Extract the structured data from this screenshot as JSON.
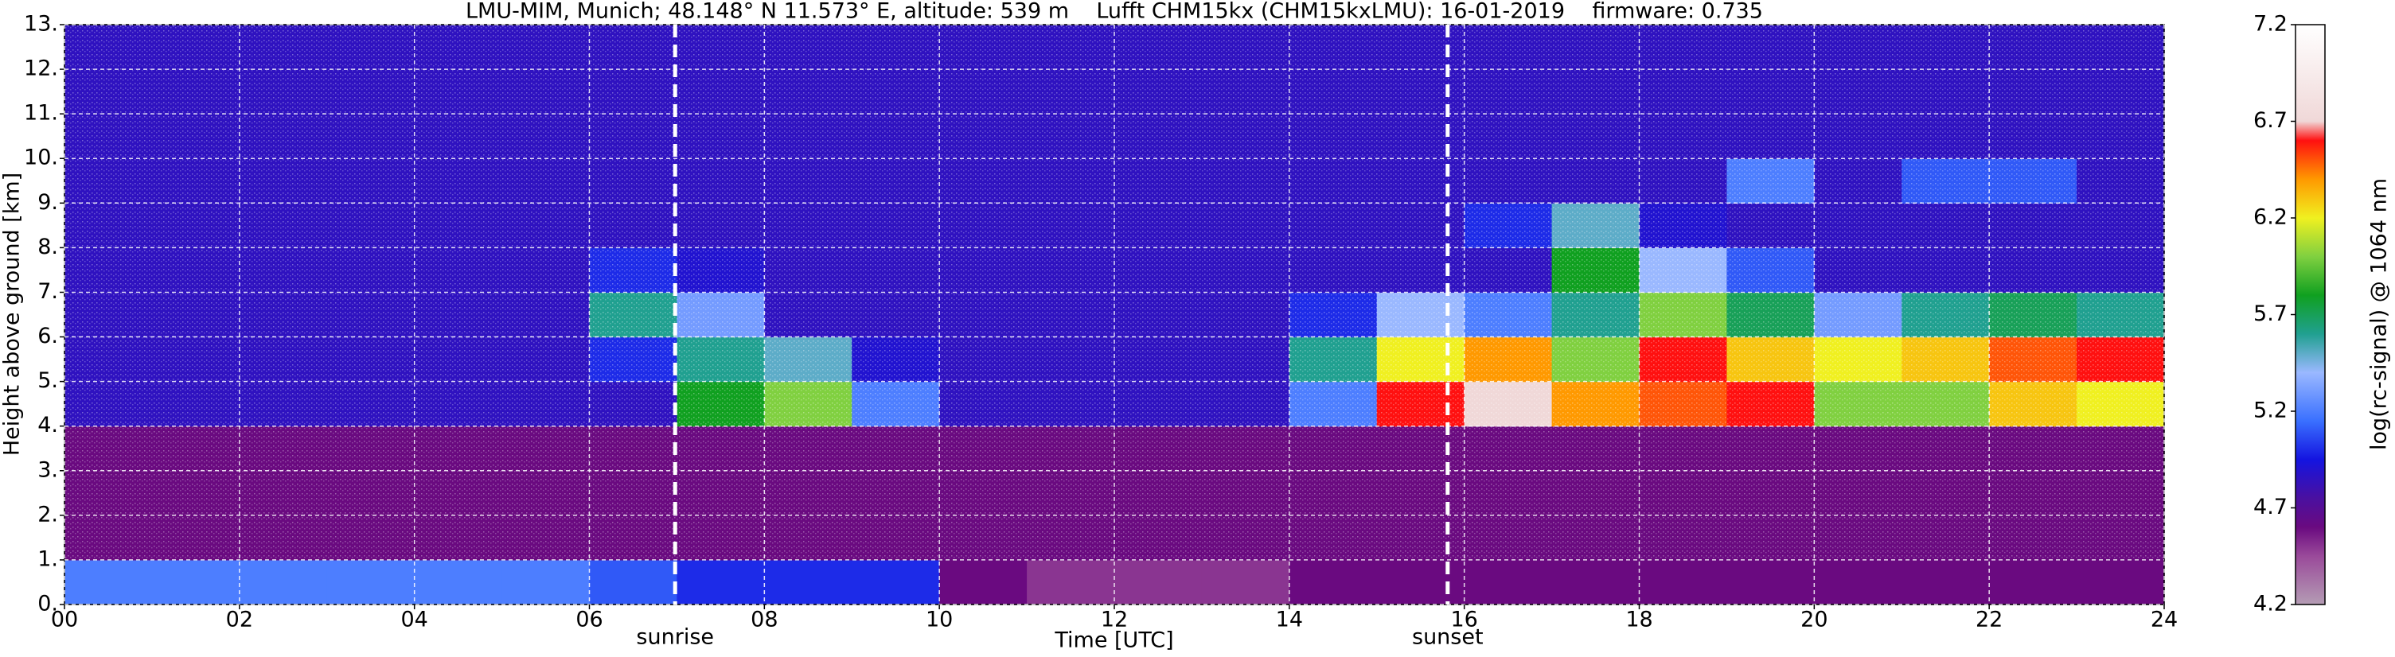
{
  "chart_data": {
    "type": "heatmap",
    "title": "LMU-MIM, Munich; 48.148° N 11.573° E, altitude: 539 m    Lufft CHM15kx (CHM15kxLMU): 16-01-2019    firmware: 0.735",
    "xlabel": "Time [UTC]",
    "ylabel": "Height above ground [km]",
    "colorbar_label": "log(rc-signal) @ 1064 nm",
    "xlim": [
      0,
      24
    ],
    "ylim": [
      0,
      13
    ],
    "grid": true,
    "xticks": [
      {
        "value": 0,
        "label": "00"
      },
      {
        "value": 2,
        "label": "02"
      },
      {
        "value": 4,
        "label": "04"
      },
      {
        "value": 6,
        "label": "06"
      },
      {
        "value": 8,
        "label": "08"
      },
      {
        "value": 10,
        "label": "10"
      },
      {
        "value": 12,
        "label": "12"
      },
      {
        "value": 14,
        "label": "14"
      },
      {
        "value": 16,
        "label": "16"
      },
      {
        "value": 18,
        "label": "18"
      },
      {
        "value": 20,
        "label": "20"
      },
      {
        "value": 22,
        "label": "22"
      },
      {
        "value": 24,
        "label": "24"
      }
    ],
    "yticks": [
      {
        "value": 0,
        "label": "0."
      },
      {
        "value": 1,
        "label": "1."
      },
      {
        "value": 2,
        "label": "2."
      },
      {
        "value": 3,
        "label": "3."
      },
      {
        "value": 4,
        "label": "4."
      },
      {
        "value": 5,
        "label": "5."
      },
      {
        "value": 6,
        "label": "6."
      },
      {
        "value": 7,
        "label": "7."
      },
      {
        "value": 8,
        "label": "8."
      },
      {
        "value": 9,
        "label": "9."
      },
      {
        "value": 10,
        "label": "10."
      },
      {
        "value": 11,
        "label": "11."
      },
      {
        "value": 12,
        "label": "12."
      },
      {
        "value": 13,
        "label": "13."
      }
    ],
    "clim": [
      4.2,
      7.2
    ],
    "cticks": [
      4.2,
      4.7,
      5.2,
      5.7,
      6.2,
      6.7,
      7.2
    ],
    "colorscale": [
      [
        4.2,
        "#b49cb4"
      ],
      [
        4.45,
        "#9a4a9a"
      ],
      [
        4.6,
        "#6a0a80"
      ],
      [
        4.75,
        "#4a10a0"
      ],
      [
        4.95,
        "#1414e0"
      ],
      [
        5.15,
        "#3a70ff"
      ],
      [
        5.4,
        "#9ab8ff"
      ],
      [
        5.6,
        "#20a090"
      ],
      [
        5.8,
        "#10a020"
      ],
      [
        6.0,
        "#80d040"
      ],
      [
        6.2,
        "#f0f020"
      ],
      [
        6.4,
        "#ff9900"
      ],
      [
        6.6,
        "#ff1010"
      ],
      [
        6.7,
        "#f0d8d8"
      ],
      [
        7.2,
        "#ffffff"
      ]
    ],
    "x_bins": [
      0,
      1,
      2,
      3,
      4,
      5,
      6,
      7,
      8,
      9,
      10,
      11,
      12,
      13,
      14,
      15,
      16,
      17,
      18,
      19,
      20,
      21,
      22,
      23,
      24
    ],
    "y_bins": [
      0,
      1,
      2,
      3,
      4,
      5,
      6,
      7,
      8,
      9,
      10,
      11,
      12,
      13
    ],
    "z": [
      [
        5.2,
        5.2,
        5.2,
        5.2,
        5.2,
        5.2,
        5.1,
        5.0,
        5.0,
        5.0,
        4.6,
        4.5,
        4.5,
        4.5,
        4.6,
        4.6,
        4.6,
        4.6,
        4.6,
        4.6,
        4.6,
        4.6,
        4.6,
        4.6
      ],
      [
        4.6,
        4.6,
        4.6,
        4.6,
        4.6,
        4.6,
        4.6,
        4.6,
        4.6,
        4.6,
        4.6,
        4.6,
        4.6,
        4.6,
        4.6,
        4.6,
        4.6,
        4.6,
        4.6,
        4.6,
        4.6,
        4.6,
        4.6,
        4.6
      ],
      [
        4.6,
        4.6,
        4.6,
        4.6,
        4.6,
        4.6,
        4.6,
        4.6,
        4.6,
        4.6,
        4.6,
        4.6,
        4.6,
        4.6,
        4.6,
        4.6,
        4.6,
        4.6,
        4.6,
        4.6,
        4.6,
        4.6,
        4.6,
        4.6
      ],
      [
        4.6,
        4.6,
        4.6,
        4.6,
        4.6,
        4.6,
        4.6,
        4.6,
        4.6,
        4.6,
        4.6,
        4.6,
        4.6,
        4.6,
        4.6,
        4.6,
        4.6,
        4.6,
        4.6,
        4.6,
        4.6,
        4.6,
        4.6,
        4.6
      ],
      [
        4.85,
        4.85,
        4.85,
        4.85,
        4.85,
        4.85,
        4.85,
        5.8,
        6.0,
        5.2,
        4.85,
        4.85,
        4.85,
        4.85,
        5.2,
        6.6,
        6.7,
        6.4,
        6.5,
        6.6,
        6.0,
        6.0,
        6.3,
        6.2
      ],
      [
        4.85,
        4.85,
        4.85,
        4.85,
        4.85,
        4.85,
        5.0,
        5.6,
        5.5,
        4.9,
        4.85,
        4.85,
        4.85,
        4.85,
        5.6,
        6.2,
        6.4,
        6.0,
        6.6,
        6.3,
        6.2,
        6.3,
        6.5,
        6.6
      ],
      [
        4.85,
        4.85,
        4.85,
        4.85,
        4.85,
        4.85,
        5.6,
        5.3,
        4.85,
        4.85,
        4.85,
        4.85,
        4.85,
        4.85,
        5.0,
        5.4,
        5.2,
        5.6,
        6.0,
        5.7,
        5.3,
        5.6,
        5.7,
        5.6
      ],
      [
        4.85,
        4.85,
        4.85,
        4.85,
        4.85,
        4.85,
        5.0,
        4.9,
        4.85,
        4.85,
        4.85,
        4.85,
        4.85,
        4.85,
        4.85,
        4.85,
        4.85,
        5.8,
        5.4,
        5.1,
        4.85,
        4.85,
        4.85,
        4.85
      ],
      [
        4.85,
        4.85,
        4.85,
        4.85,
        4.85,
        4.85,
        4.85,
        4.85,
        4.85,
        4.85,
        4.85,
        4.85,
        4.85,
        4.85,
        4.85,
        4.85,
        5.0,
        5.5,
        4.9,
        4.85,
        4.85,
        4.85,
        4.85,
        4.85
      ],
      [
        4.85,
        4.85,
        4.85,
        4.85,
        4.85,
        4.85,
        4.85,
        4.85,
        4.85,
        4.85,
        4.85,
        4.85,
        4.85,
        4.85,
        4.85,
        4.85,
        4.85,
        4.85,
        4.85,
        5.2,
        4.85,
        5.1,
        5.1,
        4.85
      ],
      [
        4.85,
        4.85,
        4.85,
        4.85,
        4.85,
        4.85,
        4.85,
        4.85,
        4.85,
        4.85,
        4.85,
        4.85,
        4.85,
        4.85,
        4.85,
        4.85,
        4.85,
        4.85,
        4.85,
        4.85,
        4.85,
        4.85,
        4.85,
        4.85
      ],
      [
        4.85,
        4.85,
        4.85,
        4.85,
        4.85,
        4.85,
        4.85,
        4.85,
        4.85,
        4.85,
        4.85,
        4.85,
        4.85,
        4.85,
        4.85,
        4.85,
        4.85,
        4.85,
        4.85,
        4.85,
        4.85,
        4.85,
        4.85,
        4.85
      ],
      [
        4.85,
        4.85,
        4.85,
        4.85,
        4.85,
        4.85,
        4.85,
        4.85,
        4.85,
        4.85,
        4.85,
        4.85,
        4.85,
        4.85,
        4.85,
        4.85,
        4.85,
        4.85,
        4.85,
        4.85,
        4.85,
        4.85,
        4.85,
        4.85
      ]
    ],
    "annotations": [
      {
        "label": "sunrise",
        "x": 6.98
      },
      {
        "label": "sunset",
        "x": 15.81
      }
    ]
  }
}
